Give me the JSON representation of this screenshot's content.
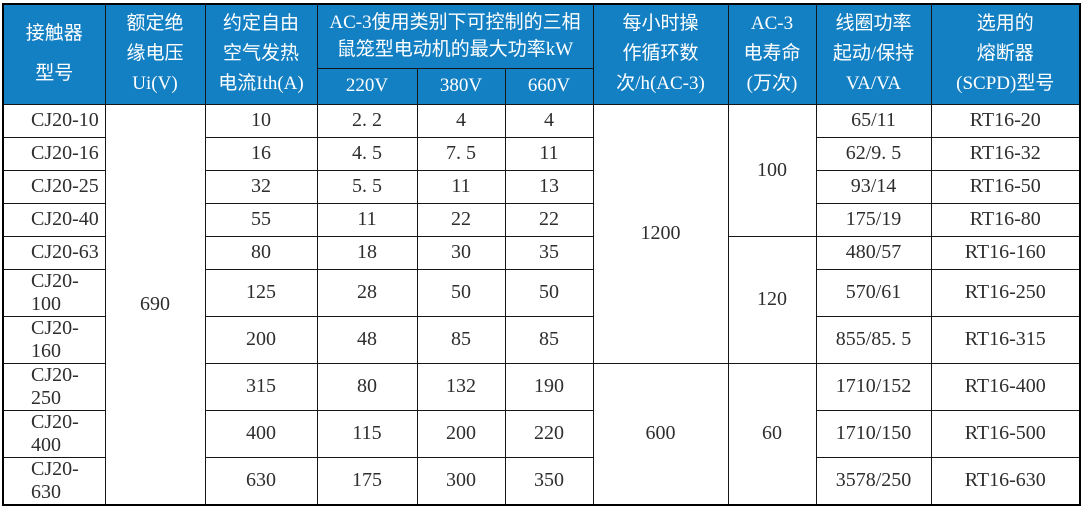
{
  "colors": {
    "header_bg": "#1480c4",
    "header_text": "#ffffff",
    "body_text": "#2e2e2e",
    "border": "#161616",
    "background": "#ffffff"
  },
  "table": {
    "header": {
      "model": [
        "接触器",
        "型号"
      ],
      "ui": [
        "额定绝",
        "缘电压",
        "Ui(V)"
      ],
      "ith": [
        "约定自由",
        "空气发热",
        "电流Ith(A)"
      ],
      "ac3_group": [
        "AC-3使用类别下可控制的三相",
        "鼠笼型电动机的最大功率kW"
      ],
      "voltages": [
        "220V",
        "380V",
        "660V"
      ],
      "cycles": [
        "每小时操",
        "作循环数",
        "次/h(AC-3)"
      ],
      "life": [
        "AC-3",
        "电寿命",
        "(万次)"
      ],
      "coil": [
        "线圈功率",
        "起动/保持",
        "VA/VA"
      ],
      "fuse": [
        "选用的",
        "熔断器",
        "(SCPD)型号"
      ]
    },
    "ui_value": "690",
    "cycles_merged": [
      {
        "value": "1200",
        "rows": 7
      },
      {
        "value": "600",
        "rows": 3
      }
    ],
    "life_merged": [
      {
        "value": "100",
        "rows": 4
      },
      {
        "value": "120",
        "rows": 3
      },
      {
        "value": "60",
        "rows": 3
      }
    ],
    "rows": [
      {
        "model": "CJ20-10",
        "ith": "10",
        "p220": "2. 2",
        "p380": "4",
        "p660": "4",
        "coil": "65/11",
        "fuse": "RT16-20"
      },
      {
        "model": "CJ20-16",
        "ith": "16",
        "p220": "4. 5",
        "p380": "7. 5",
        "p660": "11",
        "coil": "62/9. 5",
        "fuse": "RT16-32"
      },
      {
        "model": "CJ20-25",
        "ith": "32",
        "p220": "5. 5",
        "p380": "11",
        "p660": "13",
        "coil": "93/14",
        "fuse": "RT16-50"
      },
      {
        "model": "CJ20-40",
        "ith": "55",
        "p220": "11",
        "p380": "22",
        "p660": "22",
        "coil": "175/19",
        "fuse": "RT16-80"
      },
      {
        "model": "CJ20-63",
        "ith": "80",
        "p220": "18",
        "p380": "30",
        "p660": "35",
        "coil": "480/57",
        "fuse": "RT16-160"
      },
      {
        "model": "CJ20-100",
        "ith": "125",
        "p220": "28",
        "p380": "50",
        "p660": "50",
        "coil": "570/61",
        "fuse": "RT16-250"
      },
      {
        "model": "CJ20-160",
        "ith": "200",
        "p220": "48",
        "p380": "85",
        "p660": "85",
        "coil": "855/85. 5",
        "fuse": "RT16-315"
      },
      {
        "model": "CJ20-250",
        "ith": "315",
        "p220": "80",
        "p380": "132",
        "p660": "190",
        "coil": "1710/152",
        "fuse": "RT16-400"
      },
      {
        "model": "CJ20-400",
        "ith": "400",
        "p220": "115",
        "p380": "200",
        "p660": "220",
        "coil": "1710/150",
        "fuse": "RT16-500"
      },
      {
        "model": "CJ20-630",
        "ith": "630",
        "p220": "175",
        "p380": "300",
        "p660": "350",
        "coil": "3578/250",
        "fuse": "RT16-630"
      }
    ]
  }
}
